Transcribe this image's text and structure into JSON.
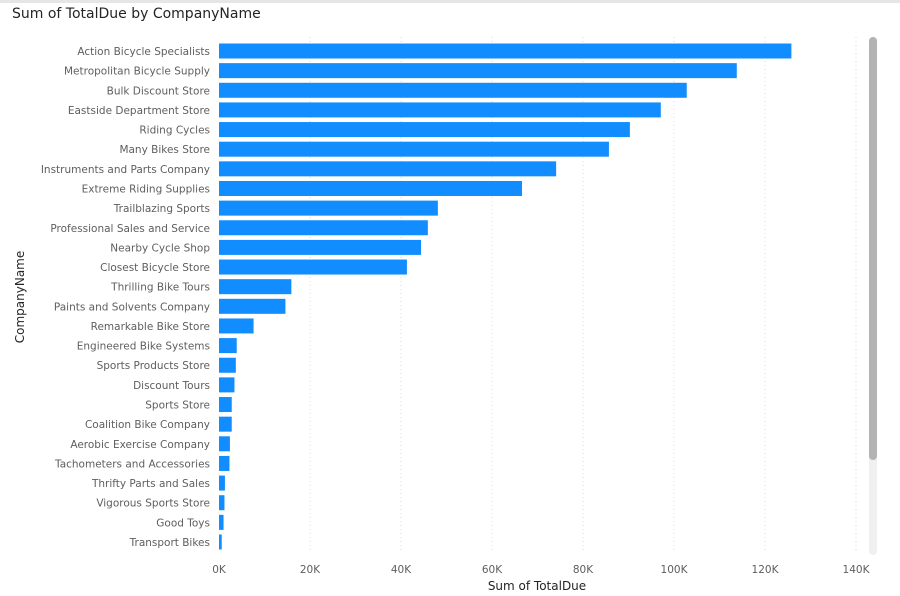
{
  "chart_data": {
    "type": "bar",
    "orientation": "horizontal",
    "title": "Sum of TotalDue by CompanyName",
    "xlabel": "Sum of TotalDue",
    "ylabel": "CompanyName",
    "xlim": [
      0,
      140000
    ],
    "xticks": [
      0,
      20000,
      40000,
      60000,
      80000,
      100000,
      120000,
      140000
    ],
    "xtick_labels": [
      "0K",
      "20K",
      "40K",
      "60K",
      "80K",
      "100K",
      "120K",
      "140K"
    ],
    "grid": true,
    "bar_color": "#118DFF",
    "categories": [
      "Action Bicycle Specialists",
      "Metropolitan Bicycle Supply",
      "Bulk Discount Store",
      "Eastside Department Store",
      "Riding Cycles",
      "Many Bikes Store",
      "Instruments and Parts Company",
      "Extreme Riding Supplies",
      "Trailblazing Sports",
      "Professional Sales and Service",
      "Nearby Cycle Shop",
      "Closest Bicycle Store",
      "Thrilling Bike Tours",
      "Paints and Solvents Company",
      "Remarkable Bike Store",
      "Engineered Bike Systems",
      "Sports Products Store",
      "Discount Tours",
      "Sports Store",
      "Coalition Bike Company",
      "Aerobic Exercise Company",
      "Tachometers and Accessories",
      "Thrifty Parts and Sales",
      "Vigorous Sports Store",
      "Good Toys",
      "Transport Bikes"
    ],
    "values": [
      125800,
      113800,
      102800,
      97100,
      90300,
      85700,
      74100,
      66600,
      48100,
      45900,
      44400,
      41300,
      15900,
      14600,
      7600,
      3900,
      3700,
      3400,
      2800,
      2800,
      2400,
      2300,
      1300,
      1200,
      1000,
      600
    ]
  }
}
